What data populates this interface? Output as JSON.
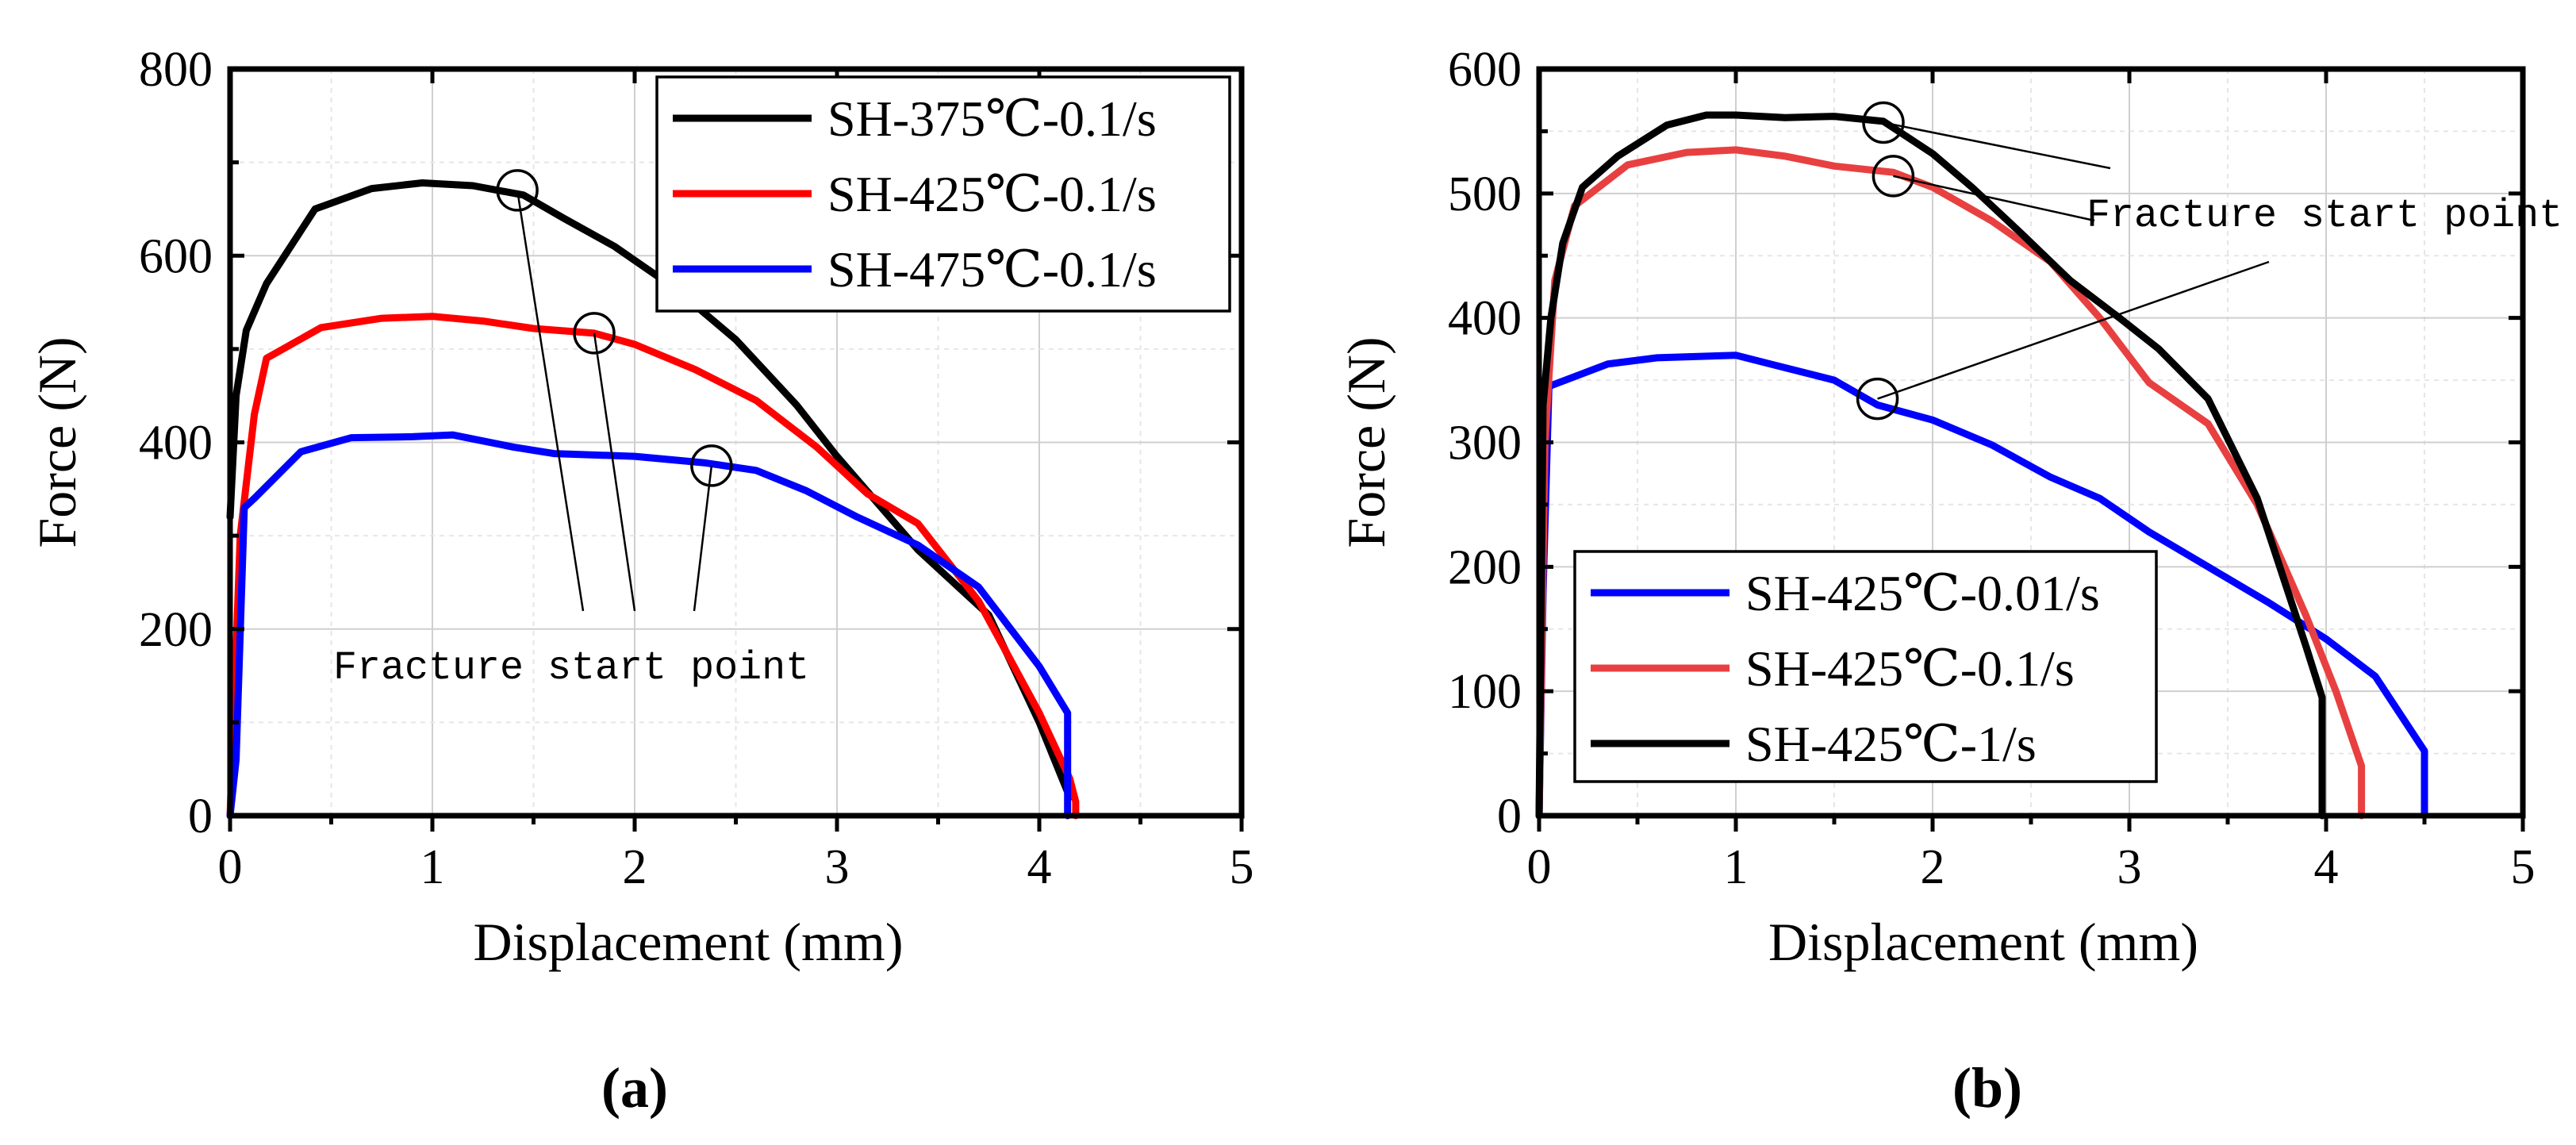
{
  "chart_data": [
    {
      "type": "line",
      "panel_label": "(a)",
      "xlabel": "Displacement (mm)",
      "ylabel": "Force (N)",
      "xlim": [
        0,
        5
      ],
      "ylim": [
        0,
        800
      ],
      "xticks": [
        0,
        1,
        2,
        3,
        4,
        5
      ],
      "yticks": [
        0,
        200,
        400,
        600,
        800
      ],
      "grid": true,
      "legend_position": "top-right",
      "annotation": {
        "text": "Fracture start point",
        "points": [
          {
            "x": 1.42,
            "y": 670
          },
          {
            "x": 1.8,
            "y": 517
          },
          {
            "x": 2.38,
            "y": 375
          }
        ]
      },
      "series": [
        {
          "name": "SH-375℃-0.1/s",
          "color": "#000000",
          "x": [
            0,
            0.03,
            0.08,
            0.18,
            0.42,
            0.7,
            0.95,
            1.2,
            1.45,
            1.65,
            1.9,
            2.2,
            2.5,
            2.8,
            3.0,
            3.4,
            3.75,
            4.0,
            4.15
          ],
          "y": [
            320,
            450,
            520,
            570,
            650,
            672,
            678,
            675,
            665,
            640,
            610,
            565,
            510,
            440,
            385,
            285,
            215,
            100,
            20
          ]
        },
        {
          "name": "SH-425℃-0.1/s",
          "color": "#ff0000",
          "x": [
            0,
            0.05,
            0.12,
            0.18,
            0.45,
            0.75,
            1.0,
            1.25,
            1.5,
            1.8,
            2.0,
            2.3,
            2.6,
            2.9,
            3.15,
            3.4,
            3.7,
            4.0,
            4.15,
            4.18,
            4.18
          ],
          "y": [
            0,
            300,
            430,
            490,
            523,
            533,
            535,
            530,
            522,
            517,
            505,
            478,
            445,
            395,
            345,
            313,
            230,
            110,
            40,
            15,
            0
          ]
        },
        {
          "name": "SH-475℃-0.1/s",
          "color": "#0000ff",
          "x": [
            0,
            0.03,
            0.07,
            0.12,
            0.35,
            0.6,
            0.9,
            1.1,
            1.4,
            1.6,
            2.0,
            2.35,
            2.6,
            2.85,
            3.1,
            3.4,
            3.7,
            4.0,
            4.14,
            4.14
          ],
          "y": [
            0,
            60,
            330,
            340,
            390,
            405,
            406,
            408,
            395,
            388,
            385,
            378,
            370,
            348,
            320,
            290,
            245,
            160,
            110,
            0
          ]
        }
      ]
    },
    {
      "type": "line",
      "panel_label": "(b)",
      "xlabel": "Displacement (mm)",
      "ylabel": "Force (N)",
      "xlim": [
        0,
        5
      ],
      "ylim": [
        0,
        600
      ],
      "xticks": [
        0,
        1,
        2,
        3,
        4,
        5
      ],
      "yticks": [
        0,
        100,
        200,
        300,
        400,
        500,
        600
      ],
      "grid": true,
      "legend_position": "bottom-left",
      "annotation": {
        "text": "Fracture start point",
        "points": [
          {
            "x": 1.75,
            "y": 557
          },
          {
            "x": 1.8,
            "y": 514
          },
          {
            "x": 1.72,
            "y": 335
          }
        ]
      },
      "series": [
        {
          "name": "SH-425℃-0.01/s",
          "color": "#0000ff",
          "x": [
            0,
            0.02,
            0.05,
            0.35,
            0.6,
            1.0,
            1.2,
            1.5,
            1.72,
            2.0,
            2.3,
            2.6,
            2.85,
            3.1,
            3.4,
            3.7,
            4.0,
            4.25,
            4.5,
            4.5
          ],
          "y": [
            0,
            180,
            345,
            363,
            368,
            370,
            362,
            350,
            330,
            318,
            298,
            272,
            255,
            228,
            200,
            172,
            142,
            112,
            52,
            0
          ]
        },
        {
          "name": "SH-425℃-0.1/s",
          "color": "#e84040",
          "x": [
            0,
            0.03,
            0.08,
            0.18,
            0.45,
            0.75,
            1.0,
            1.25,
            1.5,
            1.8,
            2.0,
            2.3,
            2.6,
            2.85,
            3.1,
            3.4,
            3.65,
            3.9,
            4.05,
            4.18,
            4.18
          ],
          "y": [
            0,
            300,
            430,
            490,
            523,
            533,
            535,
            530,
            522,
            517,
            505,
            478,
            445,
            400,
            348,
            315,
            250,
            160,
            100,
            40,
            0
          ]
        },
        {
          "name": "SH-425℃-1/s",
          "color": "#000000",
          "x": [
            0,
            0.02,
            0.06,
            0.12,
            0.22,
            0.4,
            0.65,
            0.85,
            1.0,
            1.25,
            1.5,
            1.75,
            2.0,
            2.2,
            2.45,
            2.7,
            2.95,
            3.15,
            3.4,
            3.65,
            3.9,
            3.98,
            3.98
          ],
          "y": [
            0,
            330,
            400,
            460,
            505,
            530,
            555,
            563,
            563,
            561,
            562,
            558,
            532,
            505,
            468,
            430,
            400,
            375,
            335,
            255,
            135,
            95,
            0
          ]
        }
      ]
    }
  ]
}
